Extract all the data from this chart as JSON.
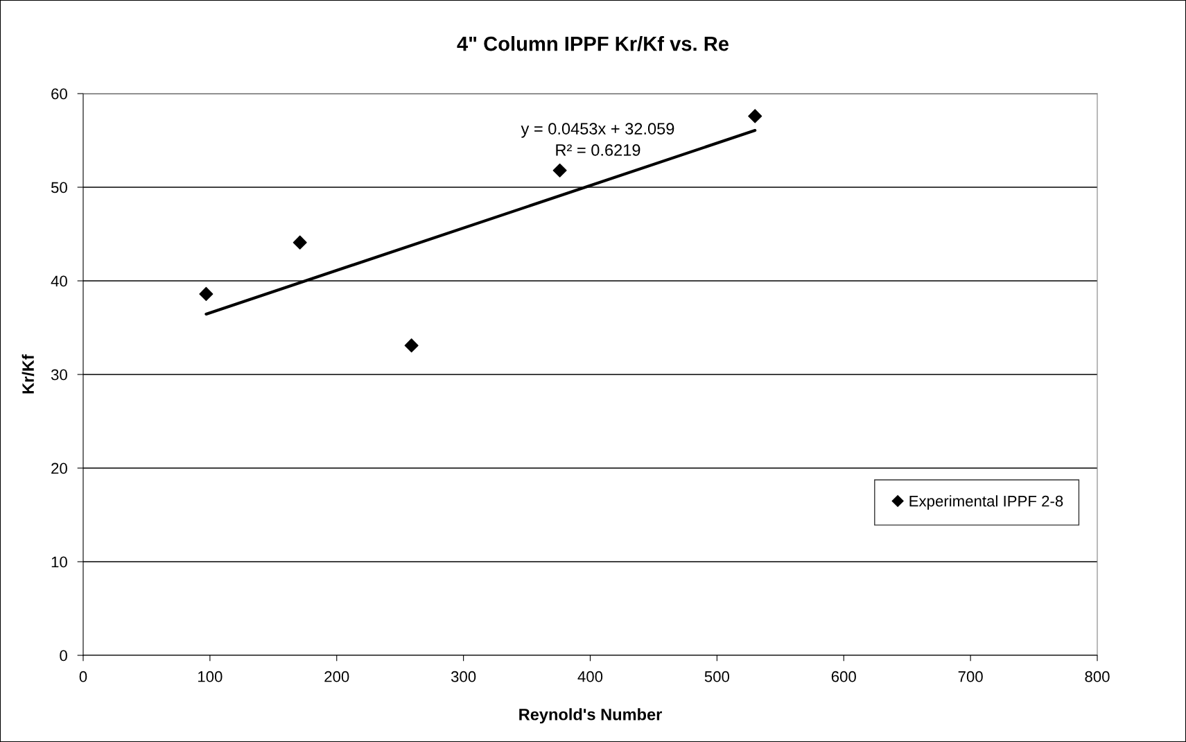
{
  "chart_data": {
    "type": "scatter",
    "title": "4\" Column IPPF Kr/Kf vs. Re",
    "xlabel": "Reynold's Number",
    "ylabel": "Kr/Kf",
    "series": [
      {
        "name": "Experimental IPPF 2-8",
        "marker": "diamond",
        "color": "#000000",
        "x": [
          97,
          171,
          259,
          376,
          530
        ],
        "values": [
          38.6,
          44.1,
          33.1,
          51.8,
          57.6
        ]
      },
      {
        "type": "line",
        "color": "#000000",
        "x": [
          97,
          530
        ],
        "values": [
          36.45,
          56.07
        ]
      }
    ],
    "annotations": [
      "y = 0.0453x + 32.059",
      "R² = 0.6219"
    ],
    "xlim": [
      0,
      800
    ],
    "xticks": [
      0,
      100,
      200,
      300,
      400,
      500,
      600,
      700,
      800
    ],
    "ylim": [
      0,
      60
    ],
    "yticks": [
      0,
      10,
      20,
      30,
      40,
      50,
      60
    ],
    "grid": "y",
    "legend": "lower right"
  }
}
